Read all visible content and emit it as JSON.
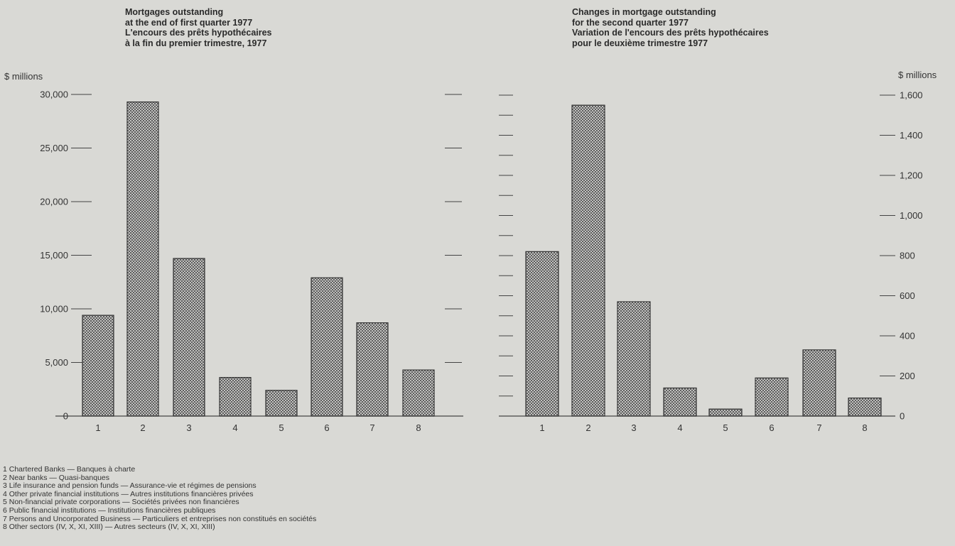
{
  "left": {
    "title_lines": [
      "Mortgages outstanding",
      "at the end of first quarter 1977",
      "L'encours des prêts hypothécaires",
      "à la fin du premier trimestre, 1977"
    ],
    "unit": "$ millions"
  },
  "right": {
    "title_lines": [
      "Changes in mortgage outstanding",
      "for the second quarter 1977",
      "Variation de l'encours des prêts hypothécaires",
      "pour le deuxième trimestre 1977"
    ],
    "unit": "$ millions"
  },
  "legend": [
    "1 Chartered Banks — Banques à charte",
    "2 Near banks — Quasi-banques",
    "3 Life insurance and pension funds — Assurance-vie et régimes de pensions",
    "4 Other private financial institutions — Autres institutions financières privées",
    "5 Non-financial private corporations — Sociétés privées non financières",
    "6 Public financial institutions — Institutions financières publiques",
    "7 Persons and Uncorporated Business — Particuliers et entreprises non constitués en sociétés",
    "8 Other sectors (IV, X, XI, XIII) — Autres secteurs (IV, X, XI, XIII)"
  ],
  "chart_data": [
    {
      "type": "bar",
      "title": "Mortgages outstanding at the end of first quarter 1977 / L'encours des prêts hypothécaires à la fin du premier trimestre, 1977",
      "ylabel": "$ millions",
      "categories": [
        "1",
        "2",
        "3",
        "4",
        "5",
        "6",
        "7",
        "8"
      ],
      "values": [
        9400,
        29300,
        14700,
        3600,
        2400,
        12900,
        8700,
        4300
      ],
      "ylim": [
        0,
        30000
      ],
      "yticks": [
        0,
        5000,
        10000,
        15000,
        20000,
        25000,
        30000
      ],
      "ytick_labels": [
        "0",
        "5,000",
        "10,000",
        "15,000",
        "20,000",
        "25,000",
        "30,000"
      ],
      "axis_side": "left",
      "grid": false,
      "bar_pattern": "crosshatch"
    },
    {
      "type": "bar",
      "title": "Changes in mortgage outstanding for the second quarter 1977 / Variation de l'encours des prêts hypothécaires pour le deuxième trimestre 1977",
      "ylabel": "$ millions",
      "categories": [
        "1",
        "2",
        "3",
        "4",
        "5",
        "6",
        "7",
        "8"
      ],
      "values": [
        820,
        1550,
        570,
        140,
        35,
        190,
        330,
        90
      ],
      "ylim": [
        0,
        1600
      ],
      "yticks": [
        0,
        200,
        400,
        600,
        800,
        1000,
        1200,
        1400,
        1600
      ],
      "ytick_labels": [
        "0",
        "200",
        "400",
        "600",
        "800",
        "1,000",
        "1,200",
        "1,400",
        "1,600"
      ],
      "axis_side": "right",
      "grid": false,
      "bar_pattern": "crosshatch"
    }
  ]
}
